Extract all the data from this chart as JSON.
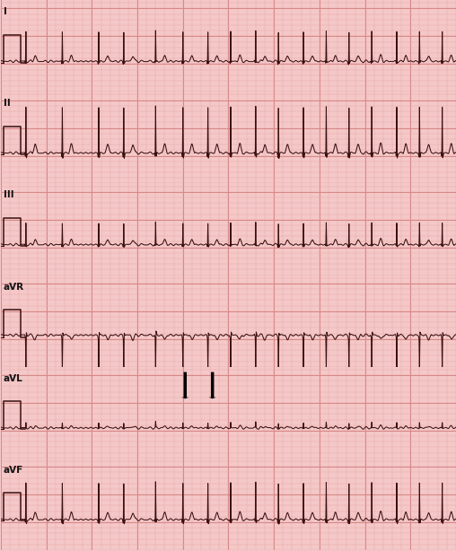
{
  "background_color": "#f5c8c8",
  "grid_minor_color": "#e8a8a8",
  "grid_major_color": "#d88888",
  "line_color": "#3a1010",
  "leads": [
    "I",
    "II",
    "III",
    "aVR",
    "aVL",
    "aVF"
  ],
  "fig_width": 5.12,
  "fig_height": 6.19,
  "lead_label_fontsize": 7.5,
  "border_color": "#ccaaaa"
}
